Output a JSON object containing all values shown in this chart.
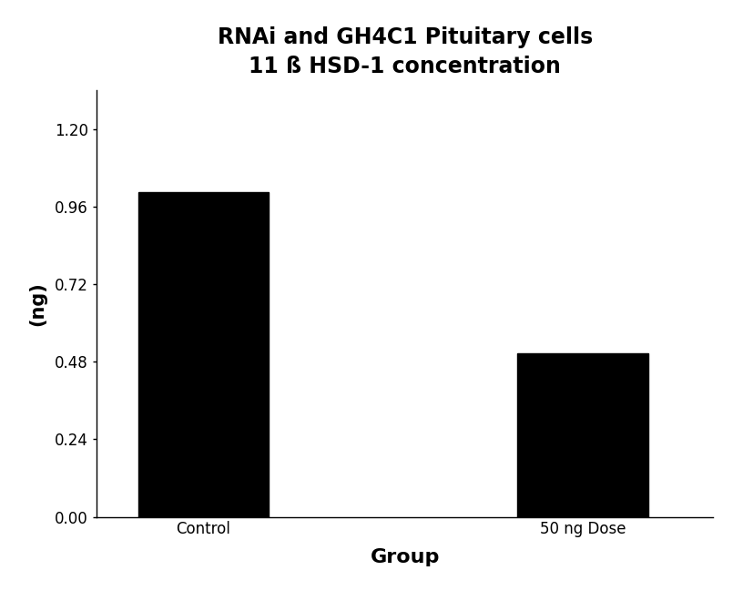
{
  "title_line1": "RNAi and GH4C1 Pituitary cells",
  "title_line2": "11 ß HSD-1 concentration",
  "categories": [
    "Control",
    "50 ng Dose"
  ],
  "bar_color": "#000000",
  "bar_width": 0.55,
  "bar_positions": [
    1.0,
    2.6
  ],
  "xlabel": "Group",
  "ylabel": "(ng)",
  "ylim_max": 1.32,
  "yticks": [
    0.0,
    0.24,
    0.48,
    0.72,
    0.96,
    1.2
  ],
  "ytick_labels": [
    "0.00",
    "0.24",
    "0.48",
    "0.72",
    "0.96",
    "1.20"
  ],
  "title_fontsize": 17,
  "subtitle_fontsize": 15,
  "axis_label_fontsize": 15,
  "tick_fontsize": 12,
  "xlabel_fontsize": 16,
  "background_color": "#ffffff",
  "control_value": 1.005,
  "dose_value": 0.505,
  "xlim_min": 0.55,
  "xlim_max": 3.15
}
